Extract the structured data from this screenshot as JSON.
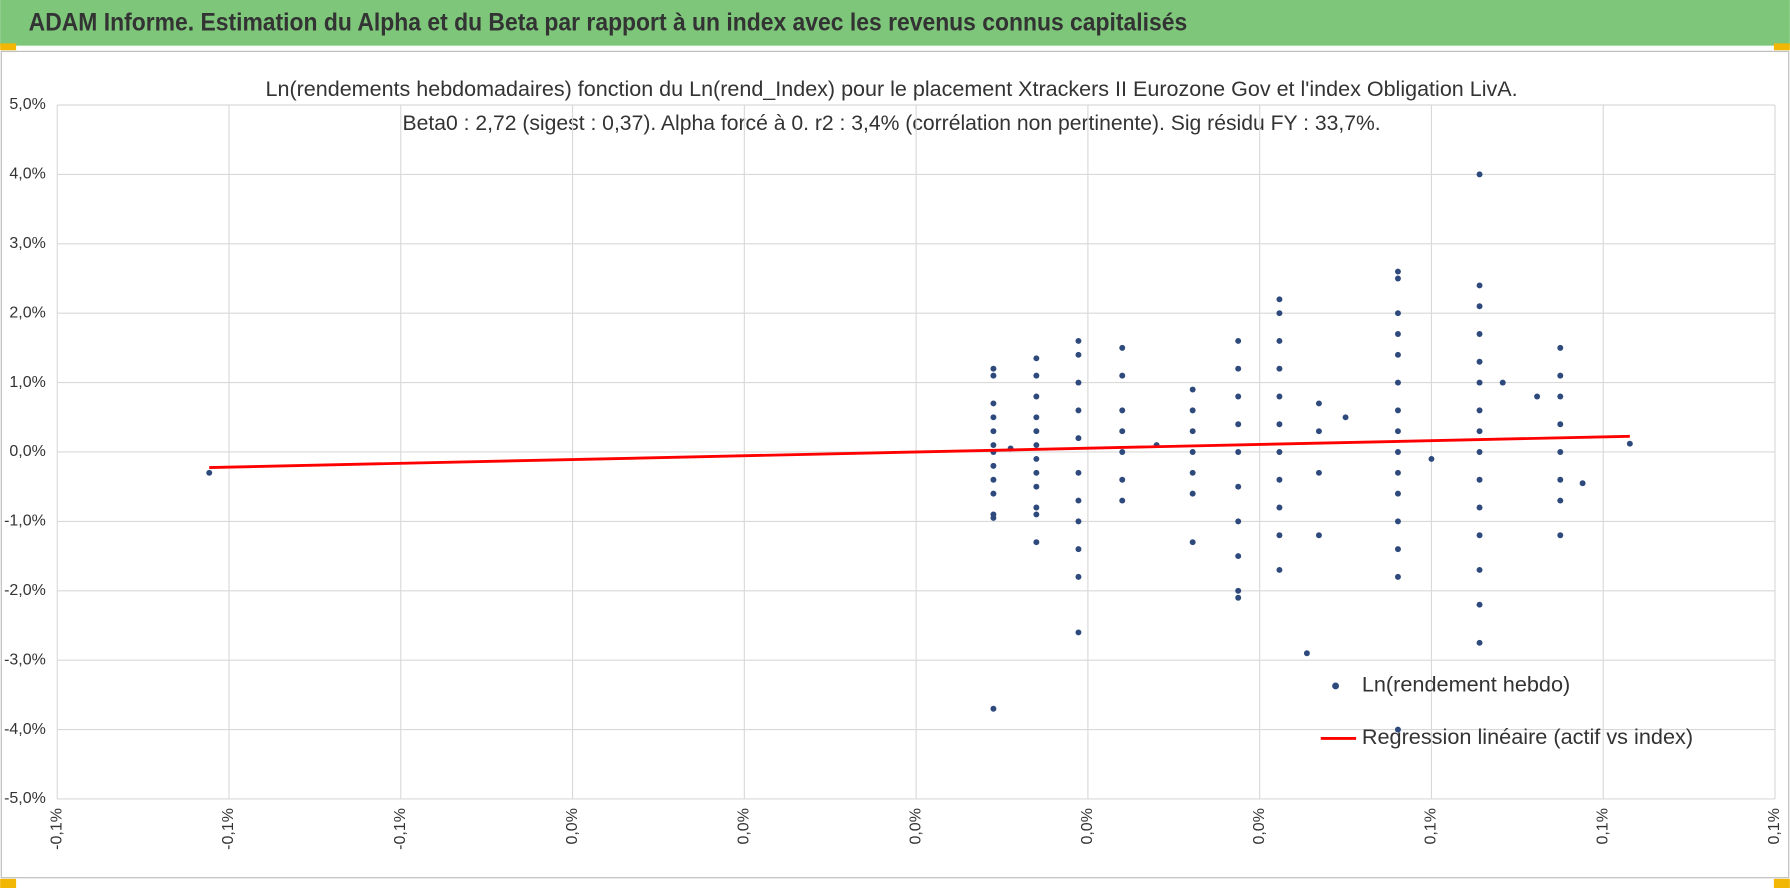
{
  "header": {
    "title": "ADAM Informe. Estimation du Alpha et du Beta par rapport à un index avec les revenus connus capitalisés"
  },
  "chart_data": {
    "type": "scatter",
    "title": "Ln(rendements hebdomadaires) fonction du Ln(rend_Index) pour le placement Xtrackers II Eurozone Gov et l'index Obligation LivA.",
    "subtitle": "Beta0 : 2,72  (sigest : 0,37).  Alpha forcé à 0. r2 : 3,4% (corrélation non pertinente). Sig résidu FY : 33,7%.",
    "xlim": [
      -0.1,
      0.1
    ],
    "xticks": [
      {
        "value": -0.1,
        "label": "-0,1%"
      },
      {
        "value": -0.08,
        "label": "-0,1%"
      },
      {
        "value": -0.06,
        "label": "-0,1%"
      },
      {
        "value": -0.04,
        "label": "0,0%"
      },
      {
        "value": -0.02,
        "label": "0,0%"
      },
      {
        "value": 0,
        "label": "0,0%"
      },
      {
        "value": 0.02,
        "label": "0,0%"
      },
      {
        "value": 0.04,
        "label": "0,0%"
      },
      {
        "value": 0.06,
        "label": "0,1%"
      },
      {
        "value": 0.08,
        "label": "0,1%"
      },
      {
        "value": 0.1,
        "label": "0,1%"
      }
    ],
    "ylim": [
      -5,
      5
    ],
    "yticks": [
      {
        "value": -5,
        "label": "-5,0%"
      },
      {
        "value": -4,
        "label": "-4,0%"
      },
      {
        "value": -3,
        "label": "-3,0%"
      },
      {
        "value": -2,
        "label": "-2,0%"
      },
      {
        "value": -1,
        "label": "-1,0%"
      },
      {
        "value": 0,
        "label": "0,0%"
      },
      {
        "value": 1,
        "label": "1,0%"
      },
      {
        "value": 2,
        "label": "2,0%"
      },
      {
        "value": 3,
        "label": "3,0%"
      },
      {
        "value": 4,
        "label": "4,0%"
      },
      {
        "value": 5,
        "label": "5,0%"
      }
    ],
    "grid": true,
    "series": [
      {
        "name": "Ln(rendement hebdo)",
        "color": "#2e4a7d",
        "type": "scatter",
        "x": [
          0.009,
          0.009,
          0.009,
          0.009,
          0.009,
          0.009,
          0.009,
          0.009,
          0.009,
          0.009,
          0.009,
          0.009,
          0.009,
          0.014,
          0.014,
          0.014,
          0.014,
          0.014,
          0.014,
          0.014,
          0.014,
          0.014,
          0.014,
          0.014,
          0.014,
          0.0189,
          0.0189,
          0.0189,
          0.0189,
          0.0189,
          0.0189,
          0.0189,
          0.0189,
          0.0189,
          0.0189,
          0.0189,
          0.024,
          0.024,
          0.024,
          0.024,
          0.024,
          0.024,
          0.024,
          0.0322,
          0.0322,
          0.0322,
          0.0322,
          0.0322,
          0.0322,
          0.0322,
          0.0375,
          0.0375,
          0.0375,
          0.0375,
          0.0375,
          0.0375,
          0.0375,
          0.0375,
          0.0375,
          0.0375,
          0.0423,
          0.0423,
          0.0423,
          0.0423,
          0.0423,
          0.0423,
          0.0423,
          0.0423,
          0.0423,
          0.0423,
          0.0423,
          0.0561,
          0.0561,
          0.0561,
          0.0561,
          0.0561,
          0.0561,
          0.0561,
          0.0561,
          0.0561,
          0.0561,
          0.0561,
          0.0561,
          0.0561,
          0.0561,
          0.0561,
          0.0656,
          0.0656,
          0.0656,
          0.0656,
          0.0656,
          0.0656,
          0.0656,
          0.0656,
          0.0656,
          0.0656,
          0.0656,
          0.0656,
          0.0656,
          0.0656,
          0.0656,
          0.075,
          0.075,
          0.075,
          0.075,
          0.075,
          0.075,
          0.075,
          0.075,
          -0.0823,
          0.0831,
          0.0776,
          0.0683,
          0.0723,
          0.0455,
          0.0469,
          0.0469,
          0.0469,
          0.0469,
          0.011,
          0.028,
          0.05,
          0.06
        ],
        "values": [
          1.2,
          1.1,
          0.7,
          0.5,
          0.3,
          0.1,
          0,
          -0.2,
          -0.4,
          -0.6,
          -0.9,
          -0.95,
          -3.7,
          1.35,
          1.1,
          0.8,
          0.5,
          0.3,
          0.1,
          -0.1,
          -0.3,
          -0.5,
          -0.8,
          -0.9,
          -1.3,
          1.6,
          1.4,
          1.0,
          0.6,
          0.2,
          -0.3,
          -0.7,
          -1.0,
          -1.4,
          -1.8,
          -2.6,
          1.5,
          1.1,
          0.6,
          0.3,
          0,
          -0.4,
          -0.7,
          0.9,
          0.6,
          0.3,
          0,
          -0.3,
          -0.6,
          -1.3,
          1.6,
          1.2,
          0.8,
          0.4,
          0,
          -0.5,
          -1.0,
          -1.5,
          -2.0,
          -2.1,
          2.2,
          2.0,
          1.6,
          1.2,
          0.8,
          0.4,
          0,
          -0.4,
          -0.8,
          -1.2,
          -1.7,
          2.6,
          2.5,
          2.0,
          1.7,
          1.4,
          1.0,
          0.6,
          0.3,
          0,
          -0.3,
          -0.6,
          -1.0,
          -1.4,
          -1.8,
          -4.0,
          4.0,
          2.4,
          2.1,
          1.7,
          1.3,
          1.0,
          0.6,
          0.3,
          0,
          -0.4,
          -0.8,
          -1.2,
          -1.7,
          -2.2,
          -2.75,
          1.5,
          1.1,
          0.8,
          0.4,
          0,
          -0.4,
          -0.7,
          -1.2,
          -0.3,
          0.12,
          -0.45,
          1.0,
          0.8,
          -2.9,
          0.7,
          0.3,
          -0.3,
          -1.2,
          0.05,
          0.1,
          0.5,
          -0.1
        ]
      },
      {
        "name": "Regression linéaire (actif vs index)",
        "color": "#ff0000",
        "type": "line",
        "x": [
          -0.0823,
          0.0831
        ],
        "values": [
          -0.224,
          0.226
        ]
      }
    ]
  }
}
